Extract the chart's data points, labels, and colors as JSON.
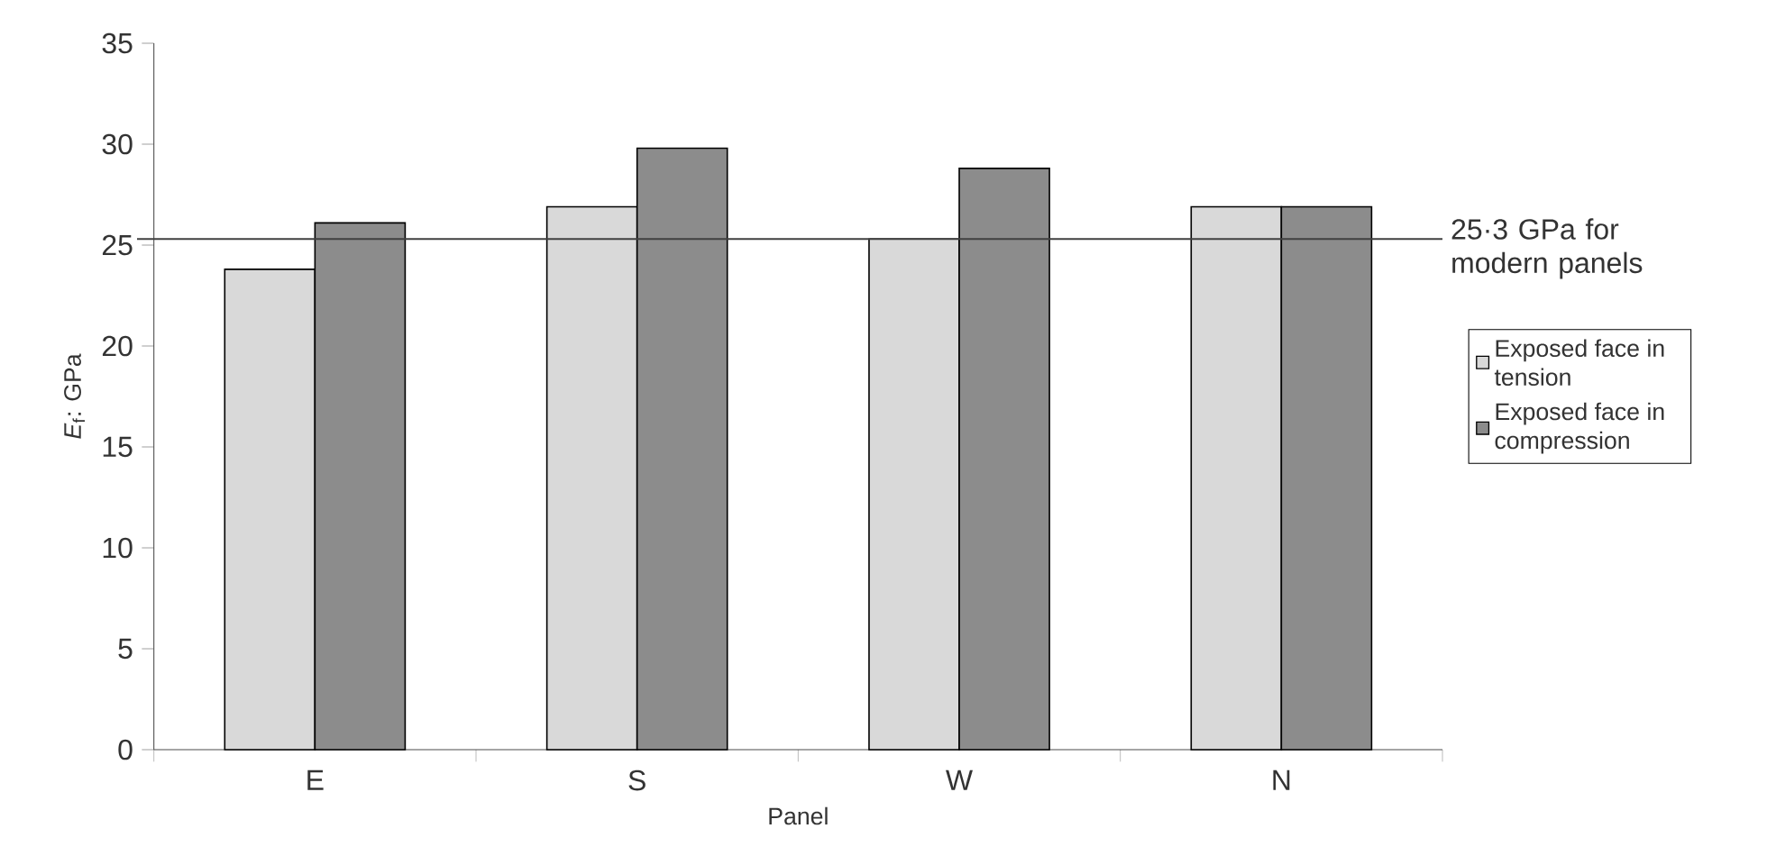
{
  "chart_data": {
    "type": "bar",
    "xlabel": "Panel",
    "ylabel": "*E*$_{f}$: GPa",
    "categories": [
      "E",
      "S",
      "W",
      "N"
    ],
    "series": [
      {
        "name": "Exposed face in tension",
        "color": "#d9d9d9",
        "values": [
          23.8,
          26.9,
          25.3,
          26.9
        ]
      },
      {
        "name": "Exposed face in compression",
        "color": "#8c8c8c",
        "values": [
          26.1,
          29.8,
          28.8,
          26.9
        ]
      }
    ],
    "ylim": [
      0,
      35
    ],
    "yticks": [
      0,
      5,
      10,
      15,
      20,
      25,
      30,
      35
    ],
    "ref_lines": [
      {
        "axis": "y",
        "value": 25.3,
        "label": "25·3 GPa for modern panels",
        "color": "#404040"
      }
    ],
    "legend": "right",
    "grid": false
  }
}
